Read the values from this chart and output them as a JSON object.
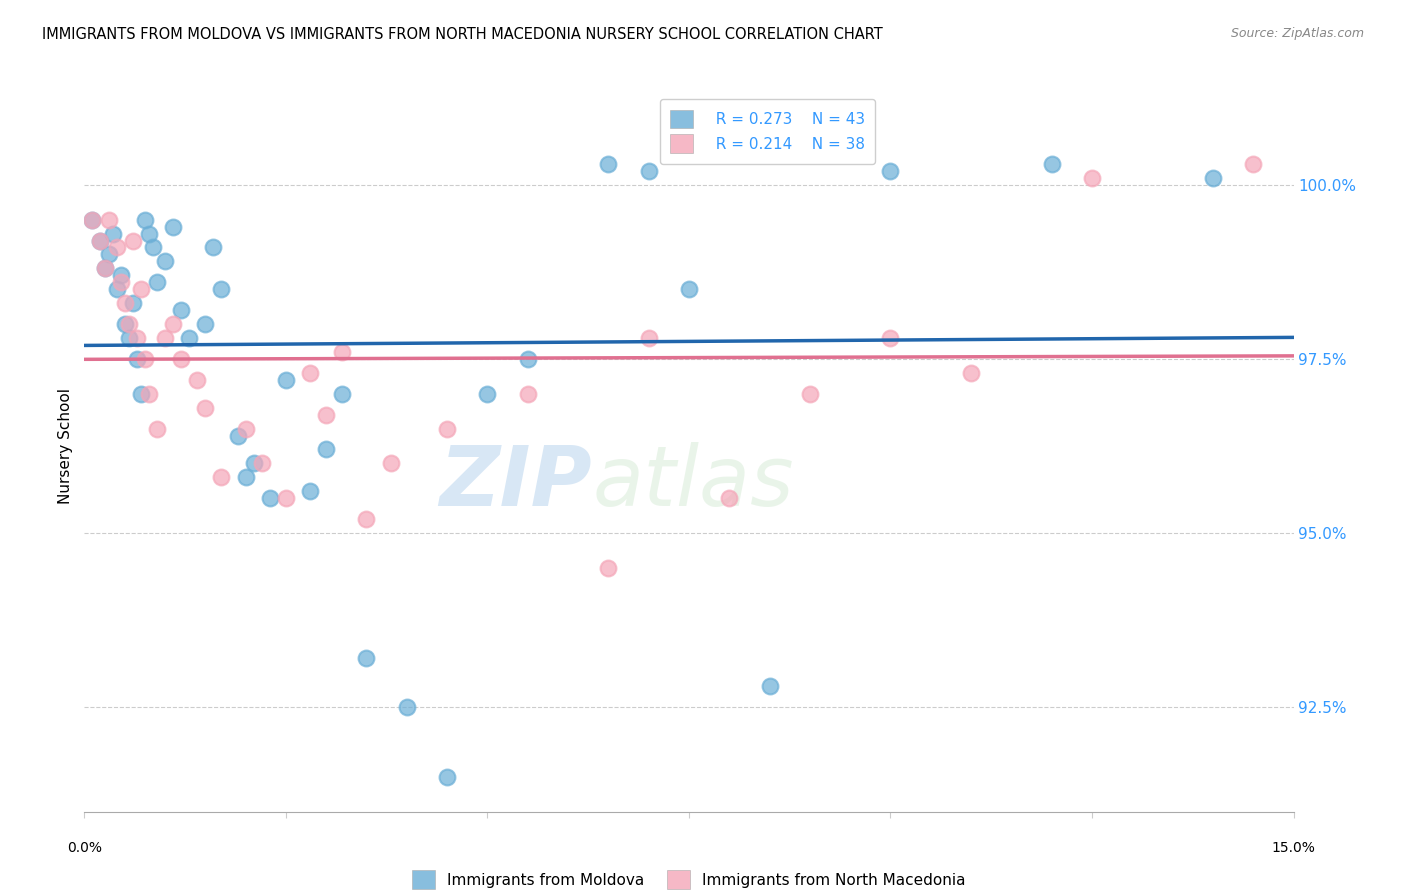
{
  "title": "IMMIGRANTS FROM MOLDOVA VS IMMIGRANTS FROM NORTH MACEDONIA NURSERY SCHOOL CORRELATION CHART",
  "source": "Source: ZipAtlas.com",
  "ylabel": "Nursery School",
  "yticks": [
    92.5,
    95.0,
    97.5,
    100.0
  ],
  "xlim": [
    0.0,
    15.0
  ],
  "ylim": [
    91.0,
    101.5
  ],
  "legend_moldova_R": "R = 0.273",
  "legend_moldova_N": "N = 43",
  "legend_macedonia_R": "R = 0.214",
  "legend_macedonia_N": "N = 38",
  "watermark_zip": "ZIP",
  "watermark_atlas": "atlas",
  "moldova_color": "#6aaed6",
  "macedonia_color": "#f4a6b8",
  "moldova_line_color": "#2166ac",
  "macedonia_line_color": "#e07090",
  "moldova_x": [
    0.1,
    0.2,
    0.25,
    0.3,
    0.35,
    0.4,
    0.45,
    0.5,
    0.55,
    0.6,
    0.65,
    0.7,
    0.75,
    0.8,
    0.85,
    0.9,
    1.0,
    1.1,
    1.2,
    1.3,
    1.5,
    1.6,
    1.7,
    1.9,
    2.0,
    2.1,
    2.3,
    2.5,
    2.8,
    3.0,
    3.2,
    3.5,
    4.0,
    4.5,
    5.0,
    5.5,
    6.5,
    7.0,
    7.5,
    8.5,
    10.0,
    12.0,
    14.0
  ],
  "moldova_y": [
    99.5,
    99.2,
    98.8,
    99.0,
    99.3,
    98.5,
    98.7,
    98.0,
    97.8,
    98.3,
    97.5,
    97.0,
    99.5,
    99.3,
    99.1,
    98.6,
    98.9,
    99.4,
    98.2,
    97.8,
    98.0,
    99.1,
    98.5,
    96.4,
    95.8,
    96.0,
    95.5,
    97.2,
    95.6,
    96.2,
    97.0,
    93.2,
    92.5,
    91.5,
    97.0,
    97.5,
    100.3,
    100.2,
    98.5,
    92.8,
    100.2,
    100.3,
    100.1
  ],
  "macedonia_x": [
    0.1,
    0.2,
    0.25,
    0.3,
    0.4,
    0.45,
    0.5,
    0.55,
    0.6,
    0.65,
    0.7,
    0.75,
    0.8,
    0.9,
    1.0,
    1.1,
    1.2,
    1.4,
    1.5,
    1.7,
    2.0,
    2.2,
    2.5,
    2.8,
    3.0,
    3.2,
    3.5,
    3.8,
    4.5,
    5.5,
    6.5,
    7.0,
    8.0,
    9.0,
    10.0,
    11.0,
    12.5,
    14.5
  ],
  "macedonia_y": [
    99.5,
    99.2,
    98.8,
    99.5,
    99.1,
    98.6,
    98.3,
    98.0,
    99.2,
    97.8,
    98.5,
    97.5,
    97.0,
    96.5,
    97.8,
    98.0,
    97.5,
    97.2,
    96.8,
    95.8,
    96.5,
    96.0,
    95.5,
    97.3,
    96.7,
    97.6,
    95.2,
    96.0,
    96.5,
    97.0,
    94.5,
    97.8,
    95.5,
    97.0,
    97.8,
    97.3,
    100.1,
    100.3
  ]
}
